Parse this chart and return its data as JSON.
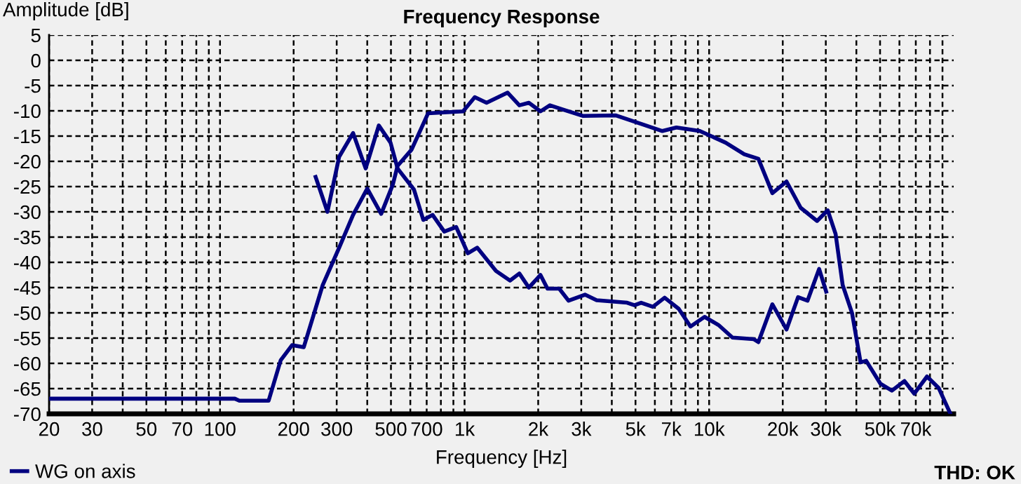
{
  "chart_data": {
    "type": "line",
    "title": "Frequency Response",
    "xlabel": "Frequency [Hz]",
    "ylabel": "Amplitude [dB]",
    "log": "x",
    "grid": true,
    "legend": "bottom left",
    "line_style": "solid",
    "marker": "none",
    "xlim": [
      20,
      100000
    ],
    "ylim": [
      -70,
      5
    ],
    "xticks": [
      20,
      30,
      {
        "value": 40,
        "label": null
      },
      50,
      {
        "value": 60,
        "label": null
      },
      70,
      {
        "value": 80,
        "label": null
      },
      {
        "value": 90,
        "label": null
      },
      100,
      200,
      300,
      {
        "value": 400,
        "label": null
      },
      500,
      {
        "value": 600,
        "label": null
      },
      700,
      {
        "value": 800,
        "label": null
      },
      {
        "value": 900,
        "label": null
      },
      {
        "value": 1000,
        "label": "1k"
      },
      {
        "value": 2000,
        "label": "2k"
      },
      {
        "value": 3000,
        "label": "3k"
      },
      {
        "value": 4000,
        "label": null
      },
      {
        "value": 5000,
        "label": "5k"
      },
      {
        "value": 6000,
        "label": null
      },
      {
        "value": 7000,
        "label": "7k"
      },
      {
        "value": 8000,
        "label": null
      },
      {
        "value": 9000,
        "label": null
      },
      {
        "value": 10000,
        "label": "10k"
      },
      {
        "value": 20000,
        "label": "20k"
      },
      {
        "value": 30000,
        "label": "30k"
      },
      {
        "value": 40000,
        "label": null
      },
      {
        "value": 50000,
        "label": "50k"
      },
      {
        "value": 60000,
        "label": null
      },
      {
        "value": 70000,
        "label": "70k"
      },
      {
        "value": 80000,
        "label": null
      },
      {
        "value": 90000,
        "label": null
      }
    ],
    "yticks": [
      5,
      0,
      -5,
      -10,
      -15,
      -20,
      -25,
      -30,
      -35,
      -40,
      -45,
      -50,
      -55,
      -60,
      -65,
      -70
    ],
    "annotations": [
      "THD: OK"
    ],
    "series": [
      {
        "name": "WG on axis",
        "color": "#000080",
        "x": [
          20,
          115,
          120,
          158,
          177,
          197,
          220,
          263,
          307,
          350,
          400,
          456,
          509,
          532,
          607,
          709,
          986,
          1101,
          1230,
          1500,
          1675,
          1832,
          2043,
          2233,
          2548,
          3040,
          4142,
          5272,
          6438,
          7350,
          9162,
          11680,
          13920,
          15900,
          18140,
          20720,
          23680,
          27630,
          30550,
          32900,
          35160,
          38430,
          41620,
          43880,
          50100,
          55900,
          62900,
          69000,
          77800,
          86900,
          97000
        ],
        "values": [
          -67,
          -67,
          -67.4,
          -67.4,
          -59.4,
          -56.4,
          -56.8,
          -44.5,
          -37.1,
          -30.6,
          -25.4,
          -30.4,
          -24.6,
          -20.9,
          -17.7,
          -10.5,
          -10.1,
          -7.3,
          -8.4,
          -6.4,
          -8.9,
          -8.4,
          -10.1,
          -8.9,
          -9.8,
          -11,
          -10.9,
          -12.6,
          -14,
          -13.3,
          -14,
          -16.3,
          -18.6,
          -19.5,
          -26.3,
          -24,
          -29.2,
          -31.8,
          -29.7,
          -34.4,
          -44.5,
          -50.1,
          -59.8,
          -59.5,
          -64,
          -65.4,
          -63.5,
          -66,
          -62.6,
          -64.9,
          -70
        ]
      },
      {
        "color": "#000080",
        "x": [
          246,
          275,
          307,
          350,
          394,
          446,
          498,
          532,
          621,
          678,
          740,
          826,
          924,
          1031,
          1126,
          1344,
          1534,
          1675,
          1832,
          2043,
          2183,
          2438,
          2663,
          3107,
          3467,
          4622,
          4950,
          5272,
          5890,
          6577,
          7510,
          8390,
          9580,
          10920,
          12460,
          15200,
          15900,
          18140,
          20720,
          23100,
          25250,
          28170,
          30100
        ],
        "values": [
          -23.1,
          -30,
          -19.1,
          -14.4,
          -21.4,
          -12.9,
          -16.3,
          -21.4,
          -25.6,
          -31.6,
          -30.6,
          -33.9,
          -33,
          -38.2,
          -37.1,
          -41.7,
          -43.6,
          -42.2,
          -45,
          -42.5,
          -45.2,
          -45.2,
          -47.6,
          -46.4,
          -47.5,
          -48,
          -48.5,
          -48,
          -48.8,
          -47,
          -49.2,
          -52.7,
          -50.8,
          -52.4,
          -54.9,
          -55.2,
          -55.8,
          -48.3,
          -53.3,
          -46.9,
          -47.6,
          -41.3,
          -45.8
        ]
      }
    ]
  }
}
